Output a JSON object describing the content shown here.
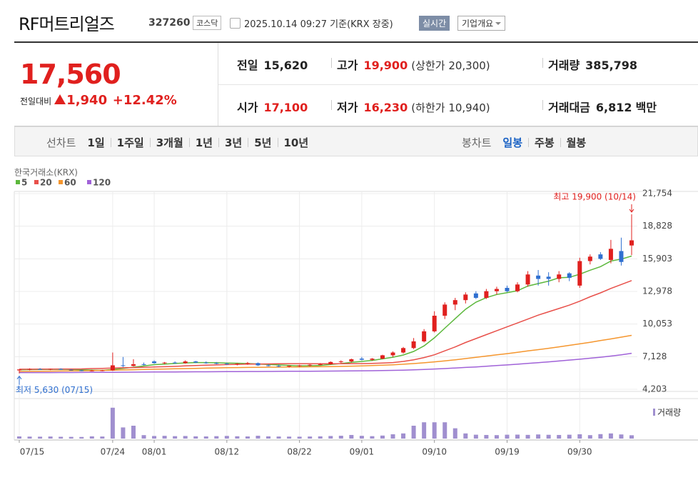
{
  "header": {
    "title": "RF머트리얼즈",
    "code": "327260",
    "market": "코스닥",
    "timestamp": "2025.10.14 09:27 기준(KRX 장중)",
    "buttons": [
      "실시간",
      "기업개요"
    ]
  },
  "quote": {
    "price": "17,560",
    "change_label": "전일대비",
    "change": "1,940",
    "change_rate": "+12.42%",
    "items": [
      {
        "label": "전일",
        "value": "15,620"
      },
      {
        "label": "고가",
        "value": "19,900",
        "note": "(상한가 20,300)"
      },
      {
        "label": "거래량",
        "value": "385,798"
      },
      {
        "label": "시가",
        "value": "17,100"
      },
      {
        "label": "저가",
        "value": "16,230",
        "note": "(하한가 10,940)"
      },
      {
        "label": "거래대금",
        "value": "6,812",
        "unit": "백만"
      }
    ]
  },
  "tabs": {
    "line": {
      "label": "선차트",
      "options": [
        "1일",
        "1주일",
        "3개월",
        "1년",
        "3년",
        "5년",
        "10년"
      ]
    },
    "candle": {
      "label": "봉차트",
      "options": [
        "일봉",
        "주봉",
        "월봉"
      ]
    }
  },
  "chart_data": {
    "type": "candlestick",
    "source": "한국거래소(KRX)",
    "high_label": "최고 19,900 (10/14)",
    "low_label": "최저 5,630 (07/15)",
    "categories": [
      "07/15",
      null,
      null,
      null,
      null,
      null,
      null,
      null,
      null,
      "07/24",
      null,
      null,
      null,
      "08/01",
      null,
      null,
      null,
      null,
      null,
      null,
      "08/12",
      null,
      null,
      null,
      null,
      null,
      null,
      "08/22",
      null,
      null,
      null,
      null,
      null,
      "09/01",
      null,
      null,
      null,
      null,
      null,
      null,
      "09/10",
      null,
      null,
      null,
      null,
      null,
      null,
      "09/19",
      null,
      null,
      null,
      null,
      null,
      null,
      "09/30",
      null,
      null,
      null,
      null,
      null
    ],
    "open": [
      5900,
      5980,
      6020,
      5990,
      6030,
      5960,
      5900,
      5860,
      5880,
      5900,
      6350,
      6300,
      6450,
      6700,
      6550,
      6600,
      6550,
      6700,
      6600,
      6550,
      6500,
      6450,
      6500,
      6550,
      6350,
      6300,
      6250,
      6300,
      6350,
      6400,
      6450,
      6650,
      6700,
      6950,
      6850,
      6950,
      7250,
      7500,
      7900,
      8500,
      9400,
      10800,
      11800,
      12200,
      12800,
      12400,
      13000,
      13300,
      13000,
      13600,
      14400,
      14300,
      14100,
      14600,
      13500,
      15700,
      16300,
      15800,
      16600,
      17100
    ],
    "high": [
      6000,
      6080,
      6100,
      6060,
      6080,
      6000,
      5950,
      5950,
      5950,
      7500,
      7100,
      6900,
      6600,
      6800,
      6650,
      6700,
      6800,
      6750,
      6700,
      6650,
      6600,
      6550,
      6650,
      6600,
      6450,
      6400,
      6350,
      6400,
      6450,
      6550,
      6700,
      6800,
      6950,
      7100,
      7000,
      7300,
      7600,
      8000,
      8800,
      9600,
      11200,
      12000,
      12400,
      12900,
      13000,
      13200,
      13400,
      13500,
      13800,
      14800,
      14900,
      14700,
      14800,
      14700,
      16000,
      16300,
      16500,
      17600,
      17800,
      19900
    ],
    "low": [
      5630,
      5900,
      5950,
      5920,
      5950,
      5880,
      5820,
      5800,
      5820,
      5850,
      6200,
      6250,
      6350,
      6500,
      6450,
      6500,
      6500,
      6550,
      6500,
      6450,
      6400,
      6350,
      6400,
      6300,
      6250,
      6200,
      6150,
      6200,
      6250,
      6350,
      6400,
      6550,
      6600,
      6800,
      6750,
      6900,
      7100,
      7400,
      7800,
      8400,
      9300,
      10500,
      11300,
      11900,
      12300,
      12300,
      12700,
      12900,
      12900,
      13400,
      13500,
      13500,
      13800,
      13900,
      13300,
      15400,
      15800,
      15500,
      15300,
      16230
    ],
    "close": [
      5980,
      6020,
      5990,
      6030,
      5960,
      5900,
      5860,
      5880,
      5900,
      6350,
      6300,
      6450,
      6420,
      6550,
      6600,
      6550,
      6700,
      6600,
      6550,
      6500,
      6450,
      6500,
      6550,
      6350,
      6300,
      6250,
      6300,
      6350,
      6400,
      6450,
      6650,
      6700,
      6900,
      6850,
      6950,
      7250,
      7500,
      7900,
      8500,
      9400,
      10800,
      11800,
      12200,
      12700,
      12400,
      13000,
      13200,
      13000,
      13600,
      14500,
      14100,
      14100,
      14500,
      14200,
      15700,
      16100,
      15900,
      16800,
      15620,
      17560
    ],
    "up_color": "#e0201e",
    "down_color": "#2f6fd0",
    "series": [
      {
        "name": "5",
        "color": "#5cb83c",
        "values": [
          5950,
          5970,
          5980,
          5990,
          5996,
          5980,
          5952,
          5926,
          5900,
          5980,
          6078,
          6180,
          6290,
          6412,
          6464,
          6514,
          6564,
          6600,
          6600,
          6580,
          6560,
          6540,
          6510,
          6470,
          6430,
          6390,
          6340,
          6310,
          6320,
          6340,
          6430,
          6510,
          6620,
          6700,
          6790,
          6930,
          7080,
          7280,
          7600,
          8100,
          8820,
          9680,
          10540,
          11380,
          12020,
          12420,
          12700,
          12860,
          13040,
          13460,
          13680,
          13900,
          14200,
          14240,
          14520,
          14880,
          15200,
          15700,
          15880,
          16150
        ]
      },
      {
        "name": "20",
        "color": "#e8504a",
        "values": [
          6000,
          6000,
          6010,
          6010,
          6020,
          6020,
          6030,
          6060,
          6080,
          6110,
          6130,
          6150,
          6170,
          6200,
          6230,
          6260,
          6300,
          6330,
          6360,
          6390,
          6420,
          6440,
          6460,
          6470,
          6480,
          6490,
          6500,
          6500,
          6500,
          6490,
          6490,
          6490,
          6500,
          6510,
          6530,
          6560,
          6600,
          6700,
          6850,
          7050,
          7300,
          7650,
          8000,
          8400,
          8750,
          9100,
          9450,
          9800,
          10150,
          10500,
          10850,
          11150,
          11450,
          11750,
          12100,
          12500,
          12850,
          13250,
          13600,
          13950
        ]
      },
      {
        "name": "60",
        "color": "#f5962e",
        "values": [
          5800,
          5810,
          5820,
          5830,
          5840,
          5850,
          5860,
          5880,
          5900,
          5920,
          5940,
          5960,
          5980,
          6000,
          6020,
          6040,
          6060,
          6080,
          6100,
          6120,
          6140,
          6150,
          6160,
          6170,
          6180,
          6190,
          6200,
          6210,
          6220,
          6230,
          6240,
          6260,
          6280,
          6300,
          6330,
          6360,
          6400,
          6450,
          6510,
          6580,
          6660,
          6750,
          6850,
          6960,
          7070,
          7180,
          7290,
          7400,
          7520,
          7640,
          7760,
          7880,
          8010,
          8140,
          8280,
          8420,
          8570,
          8720,
          8880,
          9040
        ]
      },
      {
        "name": "120",
        "color": "#a062d8",
        "values": [
          5700,
          5700,
          5705,
          5705,
          5710,
          5710,
          5715,
          5720,
          5725,
          5730,
          5735,
          5740,
          5745,
          5750,
          5755,
          5760,
          5765,
          5770,
          5775,
          5780,
          5785,
          5790,
          5795,
          5800,
          5805,
          5810,
          5815,
          5820,
          5825,
          5830,
          5835,
          5840,
          5850,
          5860,
          5870,
          5880,
          5900,
          5920,
          5950,
          5980,
          6020,
          6060,
          6110,
          6160,
          6210,
          6270,
          6330,
          6390,
          6450,
          6520,
          6590,
          6660,
          6740,
          6820,
          6900,
          6990,
          7080,
          7180,
          7300,
          7430
        ]
      }
    ],
    "ylim": [
      4203,
      21754
    ],
    "yticks": [
      {
        "value": 4203,
        "label": "4,203"
      },
      {
        "value": 7128,
        "label": "7,128"
      },
      {
        "value": 10053,
        "label": "10,053"
      },
      {
        "value": 12978,
        "label": "12,978"
      },
      {
        "value": 15903,
        "label": "15,903"
      },
      {
        "value": 18828,
        "label": "18,828"
      },
      {
        "value": 21754,
        "label": "21,754"
      }
    ],
    "grid": true,
    "volume": {
      "name": "거래량",
      "color": "#a08fcf",
      "ylim": [
        0,
        4000000
      ],
      "values": [
        250000,
        230000,
        220000,
        240000,
        210000,
        200000,
        190000,
        260000,
        240000,
        3600000,
        1300000,
        1500000,
        400000,
        300000,
        320000,
        280000,
        300000,
        260000,
        250000,
        280000,
        310000,
        270000,
        250000,
        330000,
        260000,
        240000,
        230000,
        220000,
        240000,
        260000,
        300000,
        330000,
        420000,
        320000,
        280000,
        350000,
        500000,
        600000,
        1500000,
        1900000,
        1900000,
        1900000,
        1200000,
        600000,
        450000,
        420000,
        400000,
        450000,
        460000,
        430000,
        480000,
        440000,
        420000,
        450000,
        500000,
        400000,
        520000,
        600000,
        480000,
        385798
      ]
    }
  }
}
